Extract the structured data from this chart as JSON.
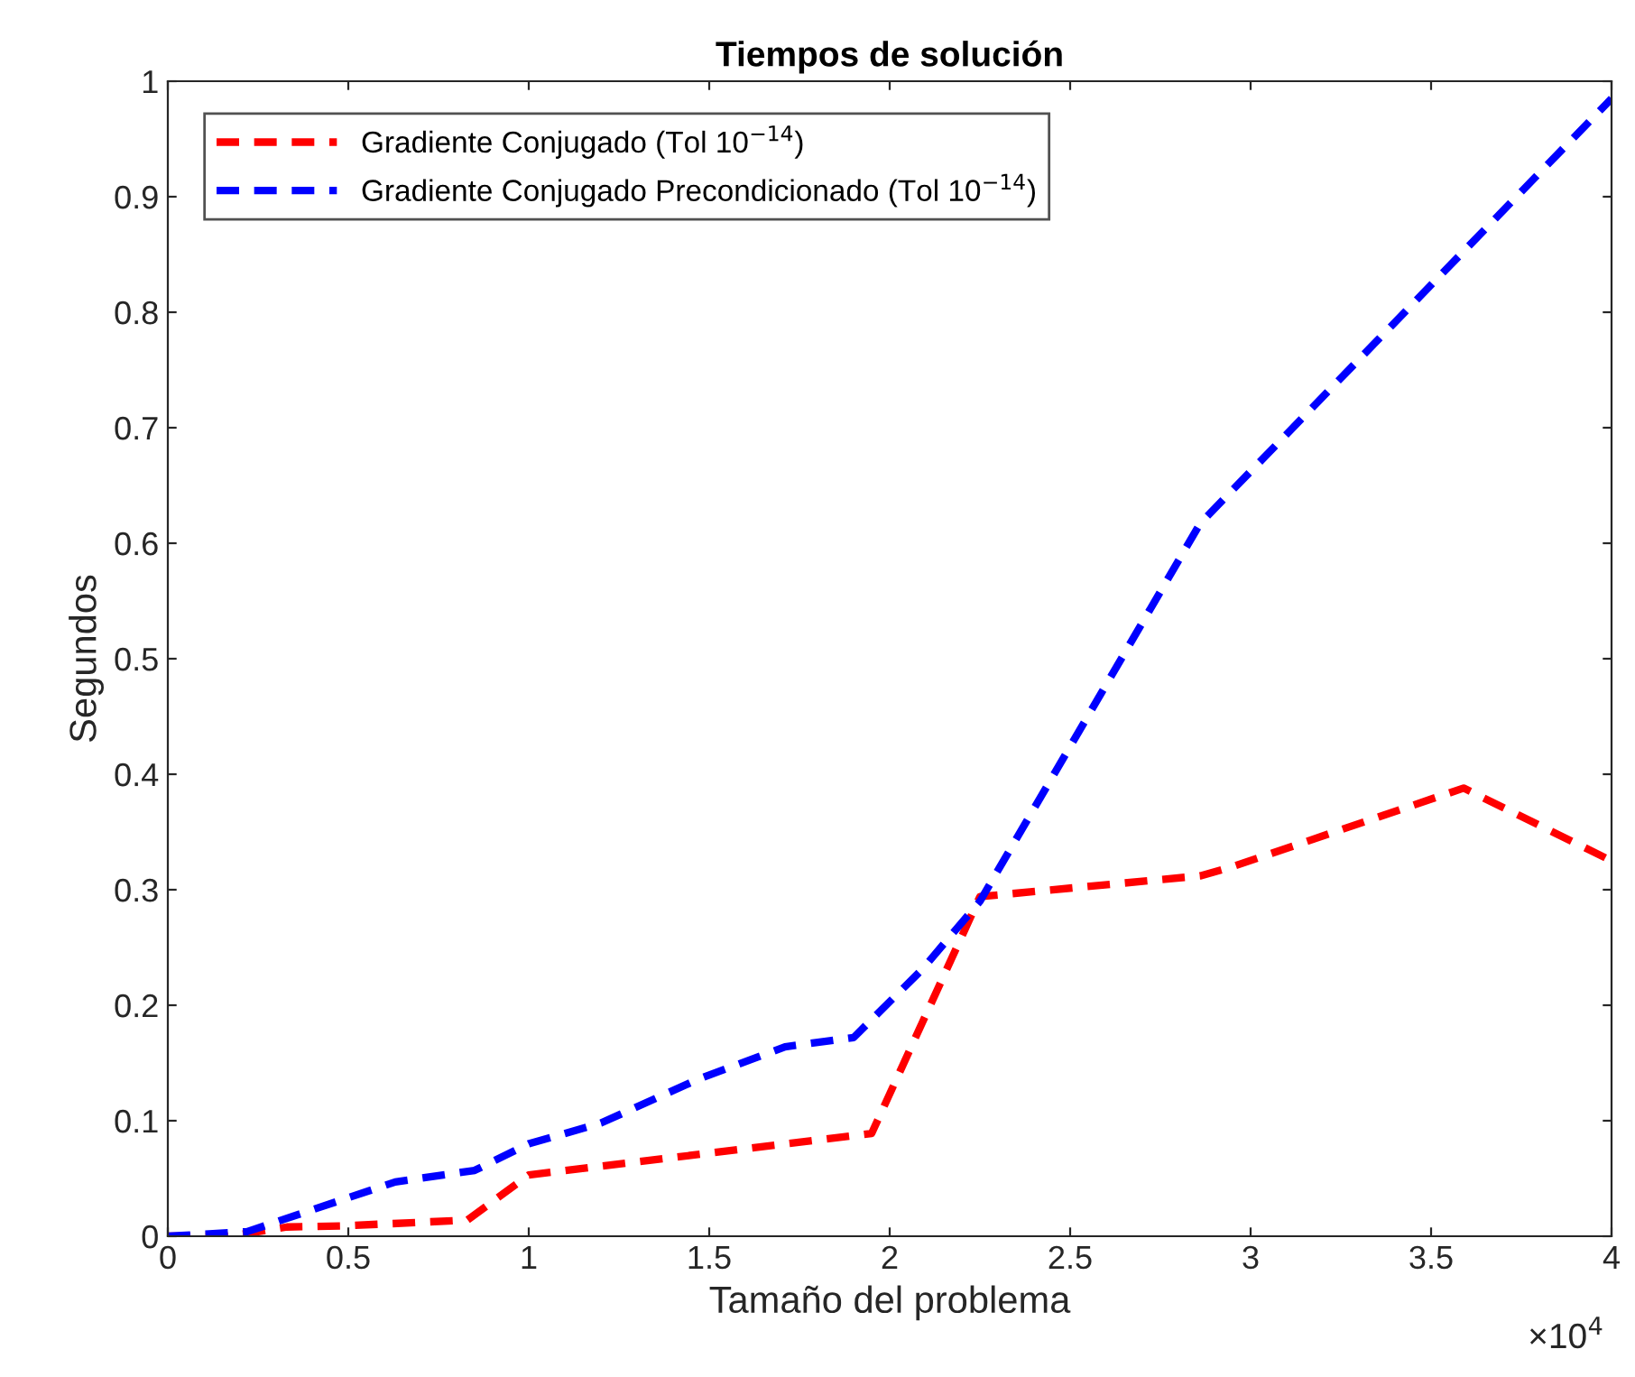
{
  "chart_data": {
    "type": "line",
    "title": "Tiempos de solución",
    "xlabel": "Tamaño del problema",
    "ylabel": "Segundos",
    "annotations": [
      "×10$^{4}$"
    ],
    "xlim": [
      0,
      4
    ],
    "xticks": [
      0,
      0.5,
      1,
      1.5,
      2,
      2.5,
      3,
      3.5,
      4
    ],
    "ylim": [
      0,
      1
    ],
    "yticks": [
      0,
      0.1,
      0.2,
      0.3,
      0.4,
      0.5,
      0.6,
      0.7,
      0.8,
      0.9,
      1
    ],
    "grid": false,
    "legend": "top left",
    "line_style": "dashed",
    "marker": "none",
    "series": [
      {
        "name": "Gradiente Conjugado (Tol 10$^{−14}$)",
        "color": "#ff0000",
        "x": [
          0,
          0.17,
          0.33,
          0.49,
          0.83,
          1.0,
          1.95,
          2.25,
          2.86,
          2.95,
          3.59,
          4
        ],
        "values": [
          0,
          0,
          0.008,
          0.009,
          0.014,
          0.053,
          0.089,
          0.294,
          0.312,
          0.32,
          0.388,
          0.325
        ]
      },
      {
        "name": "Gradiente Conjugado Precondicionado (Tol 10$^{−14}$)",
        "color": "#0000ff",
        "x": [
          0,
          0.22,
          0.63,
          0.85,
          1.0,
          1.2,
          1.47,
          1.71,
          1.9,
          2.09,
          2.25,
          2.86,
          4
        ],
        "values": [
          0,
          0.004,
          0.047,
          0.057,
          0.08,
          0.098,
          0.136,
          0.164,
          0.172,
          0.231,
          0.29,
          0.617,
          0.985
        ]
      }
    ]
  }
}
